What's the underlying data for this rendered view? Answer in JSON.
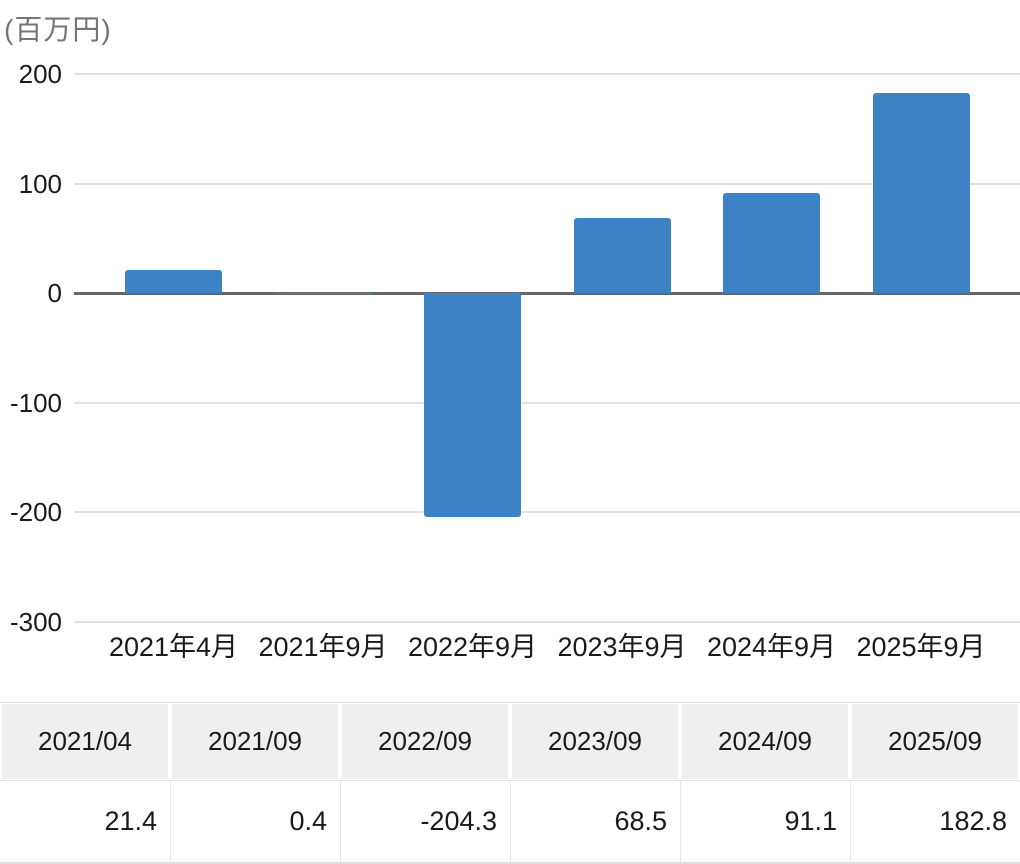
{
  "chart_data": {
    "type": "bar",
    "title": "(百万円)",
    "ylabel": "百万円",
    "categories": [
      "2021年4月",
      "2021年9月",
      "2022年9月",
      "2023年9月",
      "2024年9月",
      "2025年9月"
    ],
    "values": [
      21.4,
      0.4,
      -204.3,
      68.5,
      91.1,
      182.8
    ],
    "ylim": [
      -300,
      200
    ],
    "yticks": [
      200,
      100,
      0,
      -100,
      -200,
      -300
    ],
    "grid": true,
    "legend": "none",
    "bar_color": "#3e82c6",
    "grid_color": "#e1e1e1",
    "zero_line_color": "#666666"
  },
  "table": {
    "columns": [
      {
        "header": "2021/04",
        "value": "21.4"
      },
      {
        "header": "2021/09",
        "value": "0.4"
      },
      {
        "header": "2022/09",
        "value": "-204.3"
      },
      {
        "header": "2023/09",
        "value": "68.5"
      },
      {
        "header": "2024/09",
        "value": "91.1"
      },
      {
        "header": "2025/09",
        "value": "182.8"
      }
    ]
  }
}
